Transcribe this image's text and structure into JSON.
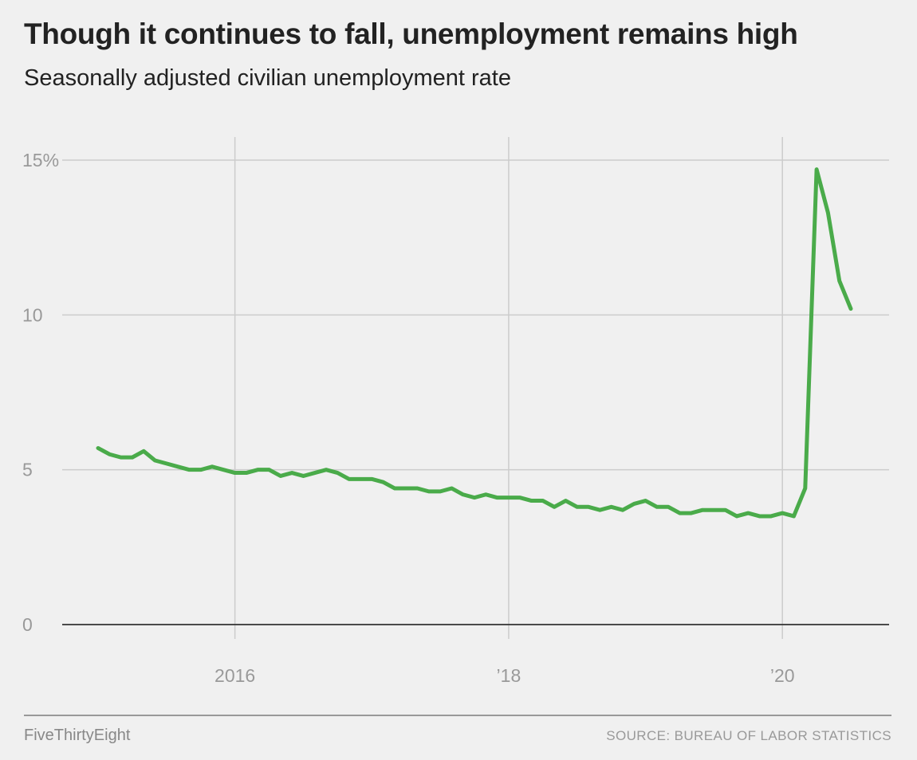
{
  "header": {
    "title": "Though it continues to fall, unemployment remains high",
    "subtitle": "Seasonally adjusted civilian unemployment rate"
  },
  "footer": {
    "brand": "FiveThirtyEight",
    "source": "SOURCE: BUREAU OF LABOR STATISTICS"
  },
  "colors": {
    "line": "#4aab4a",
    "grid": "#cccccc",
    "baseline": "#333333",
    "tick_text": "#999999"
  },
  "chart_data": {
    "type": "line",
    "title": "Though it continues to fall, unemployment remains high",
    "subtitle": "Seasonally adjusted civilian unemployment rate",
    "xlabel": "",
    "ylabel": "",
    "xlim": [
      "2015-01",
      "2020-07"
    ],
    "ylim": [
      0,
      15
    ],
    "grid": true,
    "x_ticks": [
      {
        "x": "2016-01",
        "label": "2016"
      },
      {
        "x": "2018-01",
        "label": "’18"
      },
      {
        "x": "2020-01",
        "label": "’20"
      }
    ],
    "y_ticks": [
      {
        "y": 15,
        "label": "15%"
      },
      {
        "y": 10,
        "label": "10"
      },
      {
        "y": 5,
        "label": "5"
      },
      {
        "y": 0,
        "label": "0"
      }
    ],
    "series": [
      {
        "x": [
          "2015-01",
          "2015-02",
          "2015-03",
          "2015-04",
          "2015-05",
          "2015-06",
          "2015-07",
          "2015-08",
          "2015-09",
          "2015-10",
          "2015-11",
          "2015-12",
          "2016-01",
          "2016-02",
          "2016-03",
          "2016-04",
          "2016-05",
          "2016-06",
          "2016-07",
          "2016-08",
          "2016-09",
          "2016-10",
          "2016-11",
          "2016-12",
          "2017-01",
          "2017-02",
          "2017-03",
          "2017-04",
          "2017-05",
          "2017-06",
          "2017-07",
          "2017-08",
          "2017-09",
          "2017-10",
          "2017-11",
          "2017-12",
          "2018-01",
          "2018-02",
          "2018-03",
          "2018-04",
          "2018-05",
          "2018-06",
          "2018-07",
          "2018-08",
          "2018-09",
          "2018-10",
          "2018-11",
          "2018-12",
          "2019-01",
          "2019-02",
          "2019-03",
          "2019-04",
          "2019-05",
          "2019-06",
          "2019-07",
          "2019-08",
          "2019-09",
          "2019-10",
          "2019-11",
          "2019-12",
          "2020-01",
          "2020-02",
          "2020-03",
          "2020-04",
          "2020-05",
          "2020-06",
          "2020-07"
        ],
        "values": [
          5.7,
          5.5,
          5.4,
          5.4,
          5.6,
          5.3,
          5.2,
          5.1,
          5.0,
          5.0,
          5.1,
          5.0,
          4.9,
          4.9,
          5.0,
          5.0,
          4.8,
          4.9,
          4.8,
          4.9,
          5.0,
          4.9,
          4.7,
          4.7,
          4.7,
          4.6,
          4.4,
          4.4,
          4.4,
          4.3,
          4.3,
          4.4,
          4.2,
          4.1,
          4.2,
          4.1,
          4.1,
          4.1,
          4.0,
          4.0,
          3.8,
          4.0,
          3.8,
          3.8,
          3.7,
          3.8,
          3.7,
          3.9,
          4.0,
          3.8,
          3.8,
          3.6,
          3.6,
          3.7,
          3.7,
          3.7,
          3.5,
          3.6,
          3.5,
          3.5,
          3.6,
          3.5,
          4.4,
          14.7,
          13.3,
          11.1,
          10.2
        ]
      }
    ]
  }
}
